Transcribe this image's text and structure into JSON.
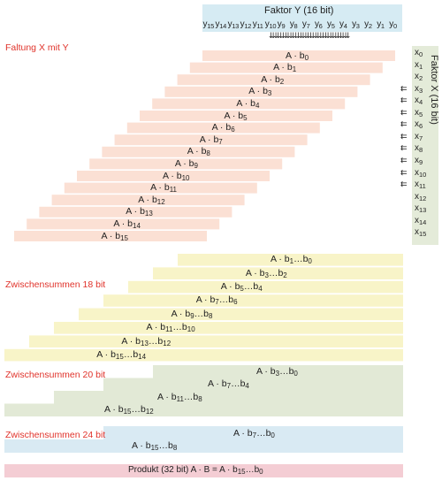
{
  "colors": {
    "faltung": "#fbe0d4",
    "z18": "#f8f4c8",
    "z20": "#e2e9d6",
    "z24": "#d9eaf3",
    "produkt": "#f4cdd4",
    "headerY": "#d6ebf3",
    "headerX": "#e4ebd9",
    "red": "#e0332b"
  },
  "faktor_y": {
    "title": "Faktor  Y (16 bit)",
    "bits": [
      "y15",
      "y14",
      "y13",
      "y12",
      "y11",
      "y10",
      "y9",
      "y8",
      "y7",
      "y6",
      "y5",
      "y4",
      "y3",
      "y2",
      "y1",
      "y0"
    ],
    "arrows": "⇊⇊⇊⇊⇊⇊⇊⇊⇊⇊⇊⇊⇊⇊⇊⇊"
  },
  "faktor_x": {
    "title": "Faktor X (16 bit)",
    "bits": [
      "x0",
      "x1",
      "x2",
      "x3",
      "x4",
      "x5",
      "x6",
      "x7",
      "x8",
      "x9",
      "x10",
      "x11",
      "x12",
      "x13",
      "x14",
      "x15"
    ],
    "arrow": "⇇"
  },
  "sections": {
    "faltung": {
      "title": "Faltung X mit Y",
      "labels": [
        "A · b0",
        "A · b1",
        "A · b2",
        "A · b3",
        "A · b4",
        "A · b5",
        "A · b6",
        "A · b7",
        "A · b8",
        "A · b9",
        "A · b10",
        "A · b11",
        "A · b12",
        "A · b13",
        "A · b14",
        "A · b15"
      ]
    },
    "z18": {
      "title": "Zwischensummen 18 bit",
      "labels": [
        "A · b1…b0",
        "A · b3…b2",
        "A · b5…b4",
        "A · b7…b6",
        "A · b9…b8",
        "A · b11…b10",
        "A · b13…b12",
        "A · b15…b14"
      ]
    },
    "z20": {
      "title": "Zwischensummen 20 bit",
      "labels": [
        "A · b3…b0",
        "A · b7…b4",
        "A · b11…b8",
        "A · b15…b12"
      ]
    },
    "z24": {
      "title": "Zwischensummen 24 bit",
      "labels": [
        "A · b7…b0",
        "A · b15…b8"
      ]
    },
    "produkt": {
      "label": "Produkt (32 bit)    A · B = A · b15…b0"
    }
  }
}
